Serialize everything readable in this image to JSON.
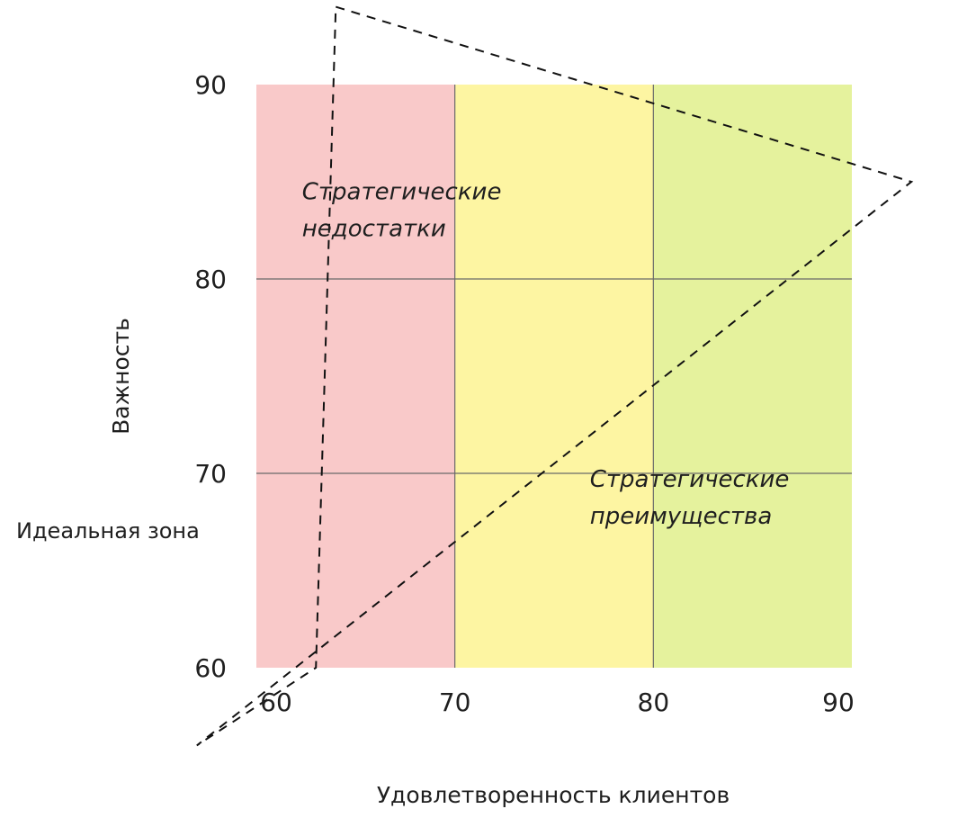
{
  "chart_data": {
    "type": "matrix",
    "xlabel": "Удовлетворенность клиентов",
    "ylabel": "Важность",
    "xlim": [
      60,
      90
    ],
    "ylim": [
      60,
      90
    ],
    "x_ticks": [
      "60",
      "70",
      "80",
      "90"
    ],
    "y_ticks": [
      "90",
      "80",
      "70",
      "60"
    ],
    "grid": true,
    "zones": [
      {
        "x_range": [
          60,
          70
        ],
        "color": "#f9c9c9"
      },
      {
        "x_range": [
          70,
          80
        ],
        "color": "#fdf5a2"
      },
      {
        "x_range": [
          80,
          90
        ],
        "color": "#e5f29d"
      }
    ],
    "ideal_zone": {
      "label": "Идеальная зона",
      "polygon": [
        [
          64,
          94
        ],
        [
          93,
          85
        ],
        [
          57,
          56
        ],
        [
          63,
          60
        ]
      ]
    },
    "annotations": [
      {
        "lines": [
          "Стратегические",
          "недостатки"
        ],
        "x": 62.3,
        "y": 84.1
      },
      {
        "lines": [
          "Стратегические",
          "преимущества"
        ],
        "x": 76.8,
        "y": 69.3
      }
    ]
  }
}
